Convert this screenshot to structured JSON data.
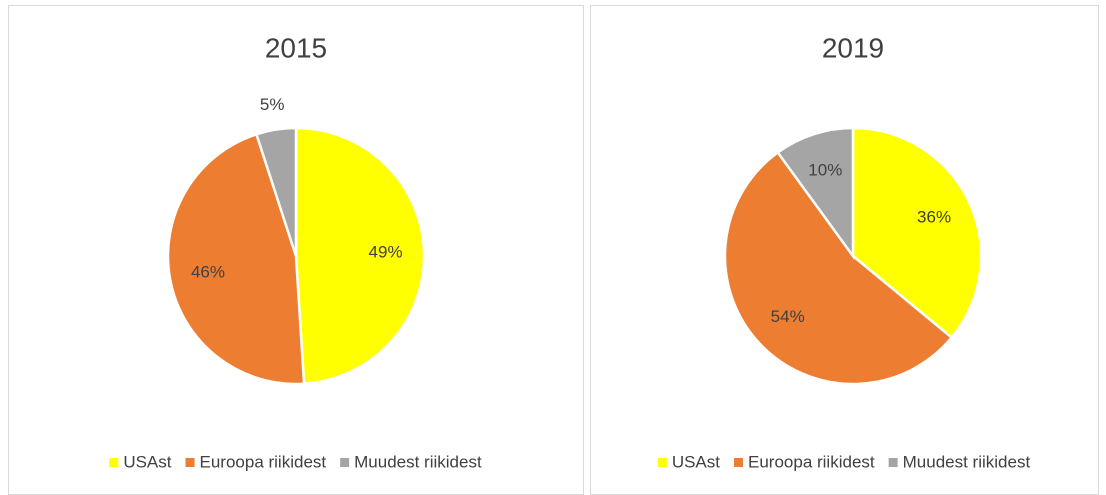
{
  "chart_data": [
    {
      "type": "pie",
      "title": "2015",
      "categories": [
        "USAst",
        "Euroopa riikidest",
        "Muudest riikidest"
      ],
      "values": [
        49,
        46,
        5
      ],
      "value_labels": [
        "49%",
        "46%",
        "5%"
      ],
      "colors": [
        "#ffff00",
        "#ed7d31",
        "#a5a5a5"
      ],
      "legend": "bottom"
    },
    {
      "type": "pie",
      "title": "2019",
      "categories": [
        "USAst",
        "Euroopa riikidest",
        "Muudest riikidest"
      ],
      "values": [
        36,
        54,
        10
      ],
      "value_labels": [
        "36%",
        "54%",
        "10%"
      ],
      "colors": [
        "#ffff00",
        "#ed7d31",
        "#a5a5a5"
      ],
      "legend": "bottom"
    }
  ]
}
